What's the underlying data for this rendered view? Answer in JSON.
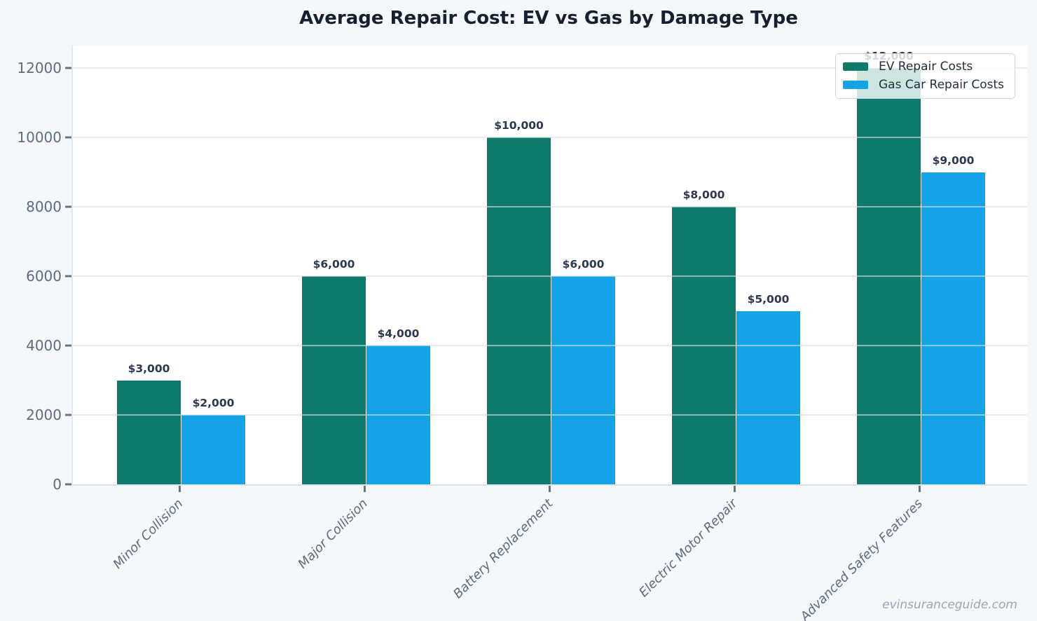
{
  "title": "Average Repair Cost: EV vs Gas by Damage Type",
  "watermark": "evinsuranceguide.com",
  "colors": {
    "ev": "#0e7a6c",
    "gas": "#15a3e8",
    "background": "#f5f8fa",
    "plot_background": "#ffffff",
    "value_label": "#2a3950",
    "tick_label": "#5c6c7e"
  },
  "chart_data": {
    "type": "bar",
    "title": "Average Repair Cost: EV vs Gas by Damage Type",
    "categories": [
      "Minor Collision",
      "Major Collision",
      "Battery Replacement",
      "Electric Motor Repair",
      "Advanced Safety Features"
    ],
    "series": [
      {
        "name": "EV Repair Costs",
        "color": "#0e7a6c",
        "values": [
          3000,
          6000,
          10000,
          8000,
          12000
        ],
        "labels": [
          "$3,000",
          "$6,000",
          "$10,000",
          "$8,000",
          "$12,000"
        ]
      },
      {
        "name": "Gas Car Repair Costs",
        "color": "#15a3e8",
        "values": [
          2000,
          4000,
          6000,
          5000,
          9000
        ],
        "labels": [
          "$2,000",
          "$4,000",
          "$6,000",
          "$5,000",
          "$9,000"
        ]
      }
    ],
    "xlabel": "",
    "ylabel": "",
    "ylim": [
      0,
      12650
    ],
    "yticks": [
      0,
      2000,
      4000,
      6000,
      8000,
      10000,
      12000
    ],
    "grid": true,
    "legend_position": "upper right"
  }
}
